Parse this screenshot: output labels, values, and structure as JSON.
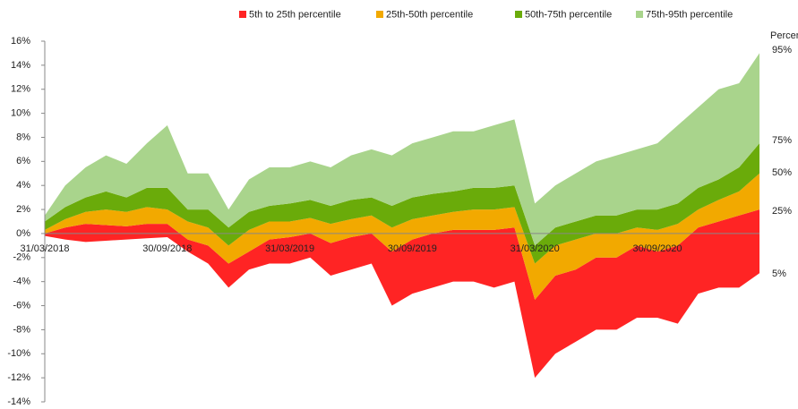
{
  "chart_data": {
    "type": "band",
    "categories": [
      "31/03/2018",
      null,
      null,
      null,
      null,
      null,
      "30/09/2018",
      null,
      null,
      null,
      null,
      null,
      "31/03/2019",
      null,
      null,
      null,
      null,
      null,
      "30/09/2019",
      null,
      null,
      null,
      null,
      null,
      "31/03/2020",
      null,
      null,
      null,
      null,
      null,
      "30/09/2020",
      null,
      null,
      null,
      null,
      null
    ],
    "series": [
      {
        "name": "5th to 25th percentile",
        "color": "#ff2424"
      },
      {
        "name": "25th-50th percentile",
        "color": "#f2a900"
      },
      {
        "name": "50th-75th percentile",
        "color": "#6aab0a"
      },
      {
        "name": "75th-95th percentile",
        "color": "#a9d48c"
      }
    ],
    "percentile_title": "Percentile",
    "lines": [
      {
        "label": "5%",
        "values": [
          -0.2,
          -0.5,
          -0.7,
          -0.6,
          -0.5,
          -0.4,
          -0.3,
          -1.5,
          -2.5,
          -4.5,
          -3,
          -2.5,
          -2.5,
          -2,
          -3.5,
          -3,
          -2.5,
          -6,
          -5,
          -4.5,
          -4,
          -4,
          -4.5,
          -4,
          -12,
          -10,
          -9,
          -8,
          -8,
          -7,
          -7,
          -7.5,
          -5,
          -4.5,
          -4.5,
          -3.3
        ]
      },
      {
        "label": "25%",
        "values": [
          0,
          0.5,
          0.8,
          0.7,
          0.6,
          0.8,
          0.8,
          -0.5,
          -1,
          -2.5,
          -1.5,
          -0.5,
          -0.3,
          0,
          -0.8,
          -0.3,
          0,
          -1.5,
          -0.5,
          0,
          0.3,
          0.3,
          0.3,
          0.5,
          -5.5,
          -3.5,
          -3,
          -2,
          -2,
          -1,
          -1.5,
          -1,
          0.5,
          1,
          1.5,
          2
        ]
      },
      {
        "label": "50%",
        "values": [
          0.3,
          1.2,
          1.8,
          2,
          1.8,
          2.2,
          2,
          1,
          0.5,
          -1,
          0.3,
          1,
          1,
          1.3,
          0.8,
          1.2,
          1.5,
          0.5,
          1.2,
          1.5,
          1.8,
          2,
          2,
          2.2,
          -2.5,
          -1,
          -0.5,
          0,
          0,
          0.5,
          0.3,
          0.8,
          2,
          2.8,
          3.5,
          5
        ]
      },
      {
        "label": "75%",
        "values": [
          1,
          2.2,
          3,
          3.5,
          3,
          3.8,
          3.8,
          2,
          2,
          0.5,
          1.8,
          2.3,
          2.5,
          2.8,
          2.3,
          2.8,
          3,
          2.3,
          3,
          3.3,
          3.5,
          3.8,
          3.8,
          4,
          -1,
          0.5,
          1,
          1.5,
          1.5,
          2,
          2,
          2.5,
          3.8,
          4.5,
          5.5,
          7.5
        ]
      },
      {
        "label": "95%",
        "values": [
          1.5,
          4,
          5.5,
          6.5,
          5.8,
          7.5,
          9,
          5,
          5,
          2,
          4.5,
          5.5,
          5.5,
          6,
          5.5,
          6.5,
          7,
          6.5,
          7.5,
          8,
          8.5,
          8.5,
          9,
          9.5,
          2.5,
          4,
          5,
          6,
          6.5,
          7,
          7.5,
          9,
          10.5,
          12,
          12.5,
          15
        ]
      }
    ],
    "ylim": [
      -14,
      16
    ],
    "yticks": [
      {
        "value": -14,
        "label": "-14%"
      },
      {
        "value": -12,
        "label": "-12%"
      },
      {
        "value": -10,
        "label": "-10%"
      },
      {
        "value": -8,
        "label": "-8%"
      },
      {
        "value": -6,
        "label": "-6%"
      },
      {
        "value": -4,
        "label": "-4%"
      },
      {
        "value": -2,
        "label": "-2%"
      },
      {
        "value": 0,
        "label": "0%"
      },
      {
        "value": 2,
        "label": "2%"
      },
      {
        "value": 4,
        "label": "4%"
      },
      {
        "value": 6,
        "label": "6%"
      },
      {
        "value": 8,
        "label": "8%"
      },
      {
        "value": 10,
        "label": "10%"
      },
      {
        "value": 12,
        "label": "12%"
      },
      {
        "value": 14,
        "label": "14%"
      },
      {
        "value": 16,
        "label": "16%"
      }
    ]
  }
}
